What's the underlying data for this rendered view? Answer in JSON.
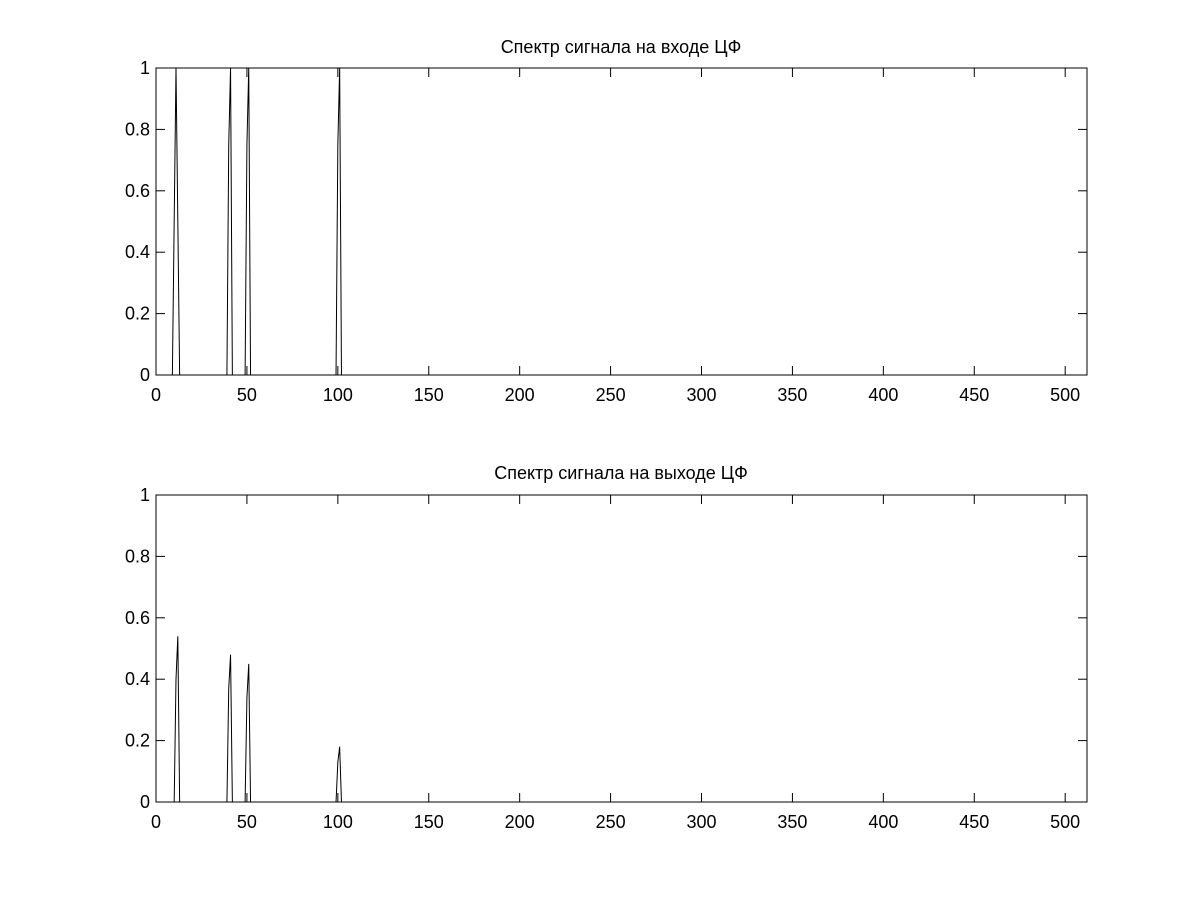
{
  "figure": {
    "background": "#ffffff",
    "axes_color": "#000000",
    "line_color": "#000000"
  },
  "chart_data": [
    {
      "type": "line",
      "title": "Спектр сигнала на входе ЦФ",
      "xlabel": "",
      "ylabel": "",
      "xlim": [
        0,
        512
      ],
      "ylim": [
        0,
        1
      ],
      "xticks": [
        0,
        50,
        100,
        150,
        200,
        250,
        300,
        350,
        400,
        450,
        500
      ],
      "yticks": [
        0,
        0.2,
        0.4,
        0.6,
        0.8,
        1
      ],
      "xtick_labels": [
        "0",
        "50",
        "100",
        "150",
        "200",
        "250",
        "300",
        "350",
        "400",
        "450",
        "500"
      ],
      "ytick_labels": [
        "0",
        "0.2",
        "0.4",
        "0.6",
        "0.8",
        "1"
      ],
      "grid": false,
      "series": [
        {
          "x": [
            0,
            9,
            10,
            11,
            12,
            13,
            39,
            40,
            41,
            42,
            49,
            50,
            51,
            52,
            99,
            100,
            101,
            102,
            512
          ],
          "y": [
            0,
            0,
            0.5,
            1,
            0.5,
            0,
            0,
            0.75,
            1,
            0,
            0,
            0.75,
            1,
            0,
            0,
            0.75,
            1,
            0,
            0
          ]
        }
      ]
    },
    {
      "type": "line",
      "title": "Спектр сигнала на выходе ЦФ",
      "xlabel": "",
      "ylabel": "",
      "xlim": [
        0,
        512
      ],
      "ylim": [
        0,
        1
      ],
      "xticks": [
        0,
        50,
        100,
        150,
        200,
        250,
        300,
        350,
        400,
        450,
        500
      ],
      "yticks": [
        0,
        0.2,
        0.4,
        0.6,
        0.8,
        1
      ],
      "xtick_labels": [
        "0",
        "50",
        "100",
        "150",
        "200",
        "250",
        "300",
        "350",
        "400",
        "450",
        "500"
      ],
      "ytick_labels": [
        "0",
        "0.2",
        "0.4",
        "0.6",
        "0.8",
        "1"
      ],
      "grid": false,
      "series": [
        {
          "x": [
            0,
            10,
            11,
            12,
            13,
            39,
            40,
            41,
            42,
            49,
            50,
            51,
            52,
            99,
            100,
            101,
            102,
            512
          ],
          "y": [
            0,
            0,
            0.4,
            0.54,
            0,
            0,
            0.37,
            0.48,
            0,
            0,
            0.34,
            0.45,
            0,
            0,
            0.13,
            0.18,
            0,
            0
          ]
        }
      ]
    }
  ]
}
